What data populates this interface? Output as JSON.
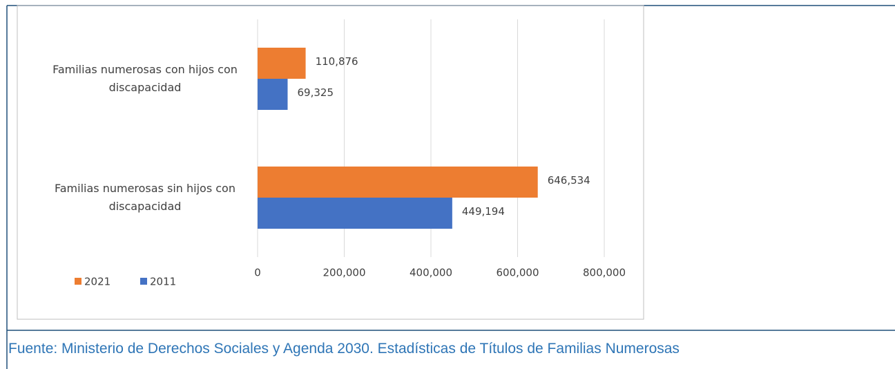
{
  "chart_data": {
    "type": "hbar",
    "categories": [
      "Familias numerosas con hijos con discapacidad",
      "Familias numerosas sin hijos con discapacidad"
    ],
    "series": [
      {
        "name": "2021",
        "color": "#ed7d31",
        "values": [
          110876,
          646534
        ],
        "value_labels": [
          "110,876",
          "646,534"
        ]
      },
      {
        "name": "2011",
        "color": "#4472c4",
        "values": [
          69325,
          449194
        ],
        "value_labels": [
          "69,325",
          "449,194"
        ]
      }
    ],
    "xlim": [
      0,
      800000
    ],
    "xticks": [
      0,
      {
        "value": 200000,
        "label": "200,000"
      },
      {
        "value": 400000,
        "label": "400,000"
      },
      {
        "value": 600000,
        "label": "600,000"
      },
      {
        "value": 800000,
        "label": "800,000"
      }
    ],
    "grid": true,
    "legend": "bottom-left"
  },
  "source": "Fuente: Ministerio de Derechos Sociales y Agenda 2030. Estadísticas de Títulos de Familias Numerosas"
}
